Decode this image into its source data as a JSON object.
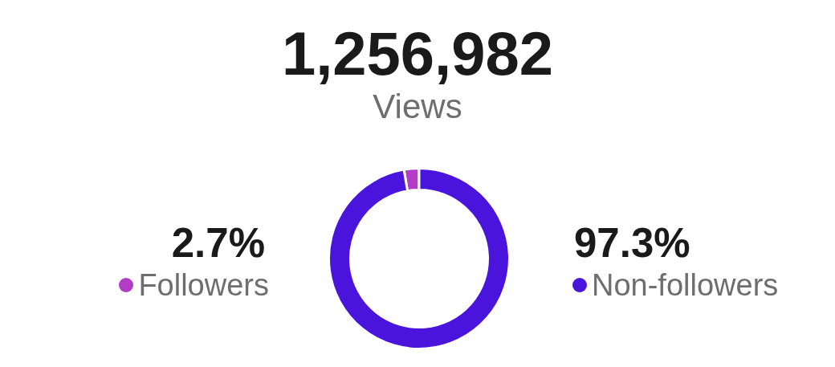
{
  "chart_data": {
    "type": "donut",
    "title": "1,256,982",
    "subtitle": "Views",
    "categories": [
      "Followers",
      "Non-followers"
    ],
    "values": [
      2.7,
      97.3
    ],
    "colors": [
      "#b23cc6",
      "#4b14dc"
    ],
    "value_labels": [
      "2.7%",
      "97.3%"
    ],
    "legend": "bottom"
  }
}
